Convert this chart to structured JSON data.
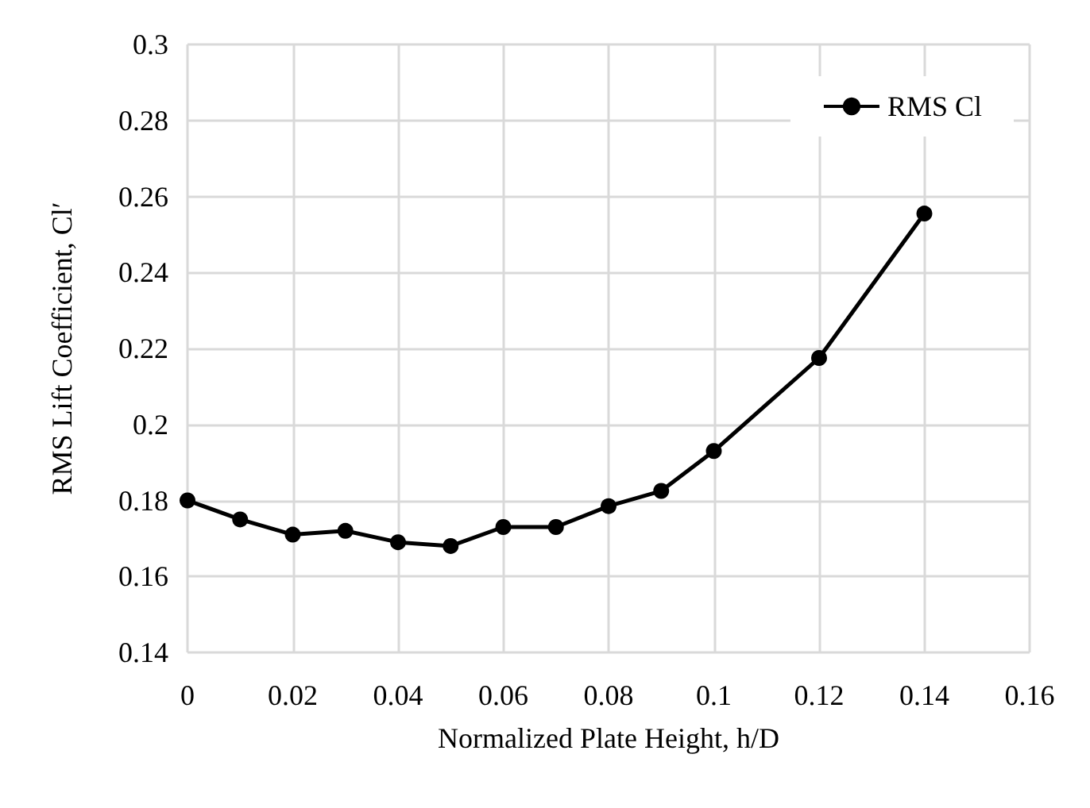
{
  "chart_data": {
    "type": "line",
    "xlabel": "Normalized Plate Height, h/D",
    "ylabel": "RMS Lift Coefficient, Cl′",
    "x": [
      0,
      0.01,
      0.02,
      0.03,
      0.04,
      0.05,
      0.06,
      0.07,
      0.08,
      0.09,
      0.1,
      0.12,
      0.14
    ],
    "series": [
      {
        "name": "RMS Cl",
        "color": "#000000",
        "values": [
          0.18,
          0.175,
          0.171,
          0.172,
          0.169,
          0.168,
          0.173,
          0.173,
          0.1785,
          0.1825,
          0.193,
          0.2175,
          0.2555
        ]
      }
    ],
    "xlim": [
      0,
      0.16
    ],
    "xticks": [
      0,
      0.02,
      0.04,
      0.06,
      0.08,
      0.1,
      0.12,
      0.14,
      0.16
    ],
    "ylim": [
      0.14,
      0.3
    ],
    "yticks": [
      0.14,
      0.16,
      0.18,
      0.2,
      0.22,
      0.24,
      0.26,
      0.28,
      0.3
    ],
    "grid": true,
    "legend": "top right",
    "marker": "circle",
    "line_style": "solid"
  }
}
